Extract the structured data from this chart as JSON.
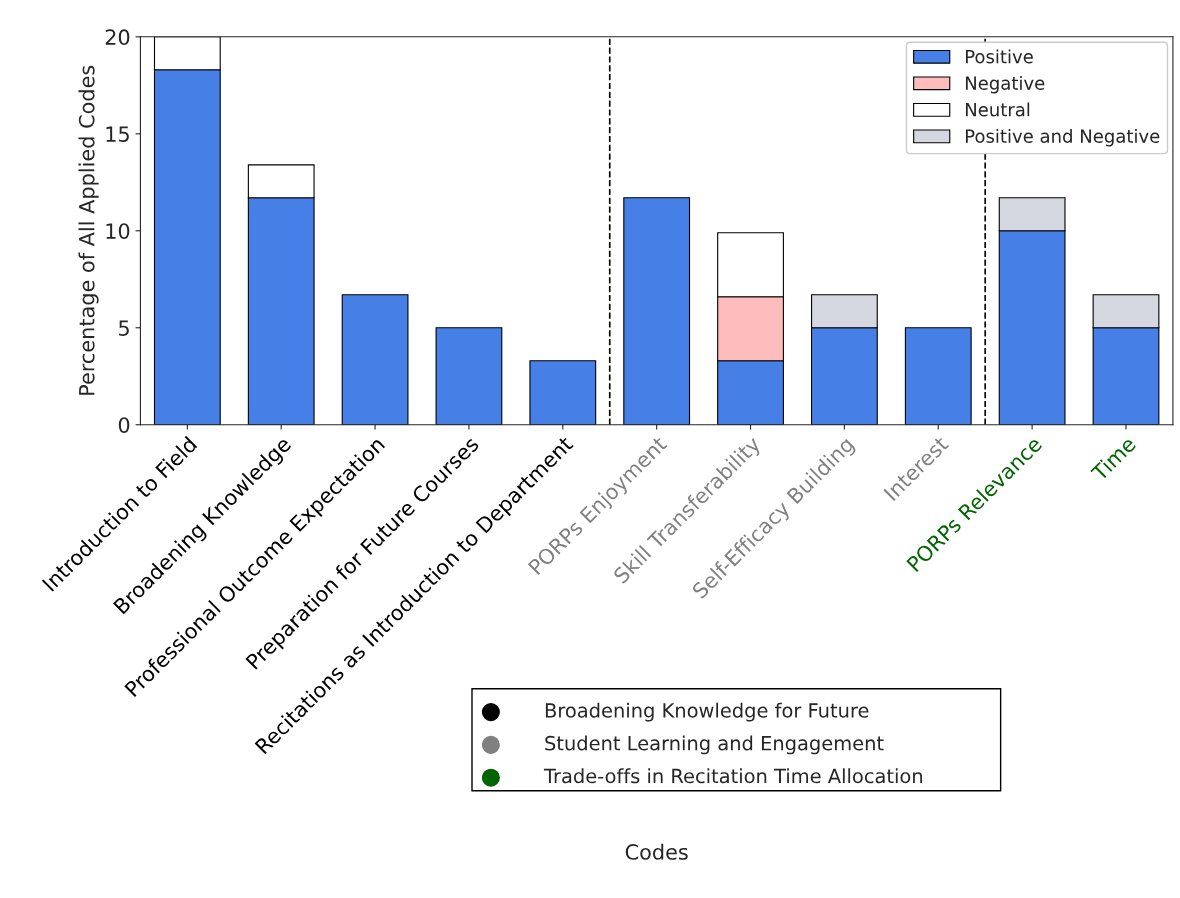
{
  "chart_data": {
    "type": "bar",
    "stacked": true,
    "xlabel": "Codes",
    "ylabel": "Percentage of All Applied Codes",
    "categories": [
      "Introduction to Field",
      "Broadening Knowledge",
      "Professional Outcome Expectation",
      "Preparation for Future Courses",
      "Recitations as Introduction to Department",
      "PORPs Enjoyment",
      "Skill Transferability",
      "Self-Efficacy Building",
      "Interest",
      "PORPs Relevance",
      "Time"
    ],
    "series": [
      {
        "name": "Positive",
        "color": "#4680e6",
        "values": [
          18.3,
          11.7,
          6.7,
          5,
          3.3,
          11.7,
          3.3,
          5,
          5,
          10,
          5
        ]
      },
      {
        "name": "Negative",
        "color": "#ffbcbc",
        "values": [
          null,
          null,
          null,
          null,
          null,
          null,
          3.3,
          null,
          null,
          null,
          null
        ]
      },
      {
        "name": "Neutral",
        "color": "#ffffff",
        "values": [
          1.7,
          1.7,
          null,
          null,
          null,
          null,
          3.3,
          null,
          null,
          null,
          null
        ]
      },
      {
        "name": "Positive and Negative",
        "color": "#d4d7e0",
        "values": [
          null,
          null,
          null,
          null,
          null,
          null,
          null,
          1.7,
          null,
          1.7,
          1.7
        ]
      },
      {
        "type": "scatter",
        "color": "#000000",
        "x": [
          "Introduction to Field",
          "Broadening Knowledge",
          "Professional Outcome Expectation",
          "Preparation for Future Courses",
          "Recitations as Introduction to Department"
        ],
        "values": [
          null,
          null,
          null,
          null,
          null
        ]
      },
      {
        "type": "scatter",
        "color": "#808080",
        "x": [
          "PORPs Enjoyment",
          "Skill Transferability",
          "Self-Efficacy Building",
          "Interest"
        ],
        "values": [
          null,
          null,
          null,
          null
        ]
      },
      {
        "type": "scatter",
        "color": "#006400",
        "x": [
          "PORPs Relevance",
          "Time"
        ],
        "values": [
          null,
          null
        ]
      }
    ],
    "annotations": [
      "Broadening Knowledge for Future",
      "Student Learning and Engagement",
      "Trade-offs in Recitation Time Allocation"
    ],
    "ylim": [
      0,
      20
    ],
    "yticks": [
      0,
      5,
      10,
      15,
      20
    ],
    "legend": "top right"
  }
}
